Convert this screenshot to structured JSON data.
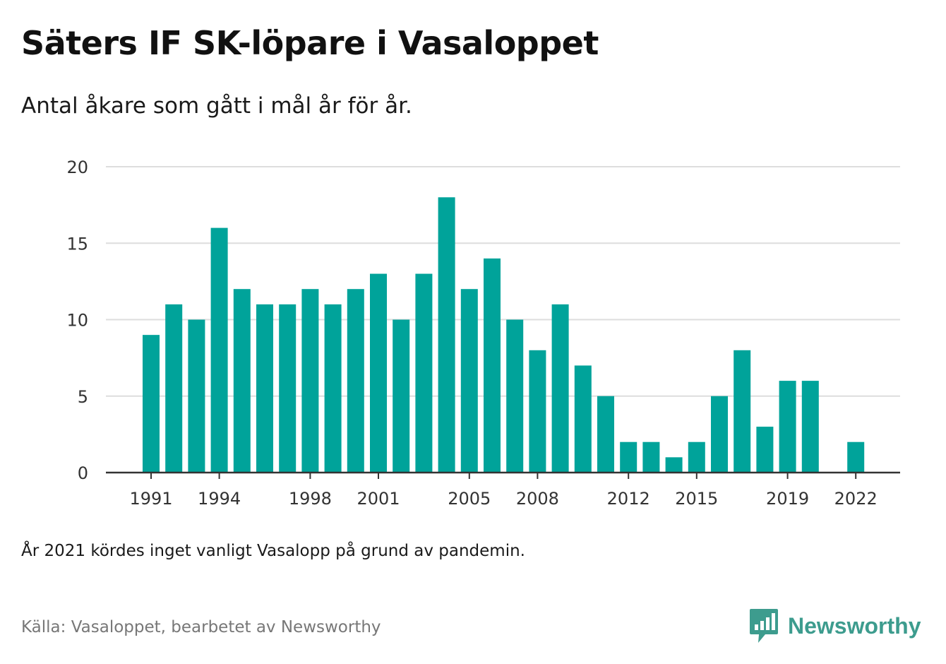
{
  "title": "Säters IF SK-löpare i Vasaloppet",
  "subtitle": "Antal åkare som gått i mål år för år.",
  "note": "År 2021 kördes inget vanligt Vasalopp på grund av pandemin.",
  "source": "Källa: Vasaloppet, bearbetet av Newsworthy",
  "brand": {
    "name": "Newsworthy",
    "icon": "newsworthy-logo-icon"
  },
  "colors": {
    "bar": "#00a39a",
    "grid": "#dddddd",
    "axis": "#333333",
    "brand": "#3d9c8e"
  },
  "chart_data": {
    "type": "bar",
    "x": [
      1991,
      1992,
      1993,
      1994,
      1995,
      1996,
      1997,
      1998,
      1999,
      2000,
      2001,
      2002,
      2003,
      2004,
      2005,
      2006,
      2007,
      2008,
      2009,
      2010,
      2011,
      2012,
      2013,
      2014,
      2015,
      2016,
      2017,
      2018,
      2019,
      2020,
      2021,
      2022
    ],
    "values": [
      9,
      11,
      10,
      16,
      12,
      11,
      11,
      12,
      11,
      12,
      13,
      10,
      13,
      18,
      12,
      14,
      10,
      8,
      11,
      7,
      5,
      2,
      2,
      1,
      2,
      5,
      8,
      3,
      6,
      6,
      null,
      2
    ],
    "x_tick_labels": [
      "1991",
      "1994",
      "1998",
      "2001",
      "2005",
      "2008",
      "2012",
      "2015",
      "2019",
      "2022"
    ],
    "y_ticks": [
      "0",
      "5",
      "10",
      "15",
      "20"
    ],
    "ylim": [
      0,
      20
    ],
    "xlabel": "",
    "ylabel": "",
    "grid": true,
    "legend": "none"
  }
}
